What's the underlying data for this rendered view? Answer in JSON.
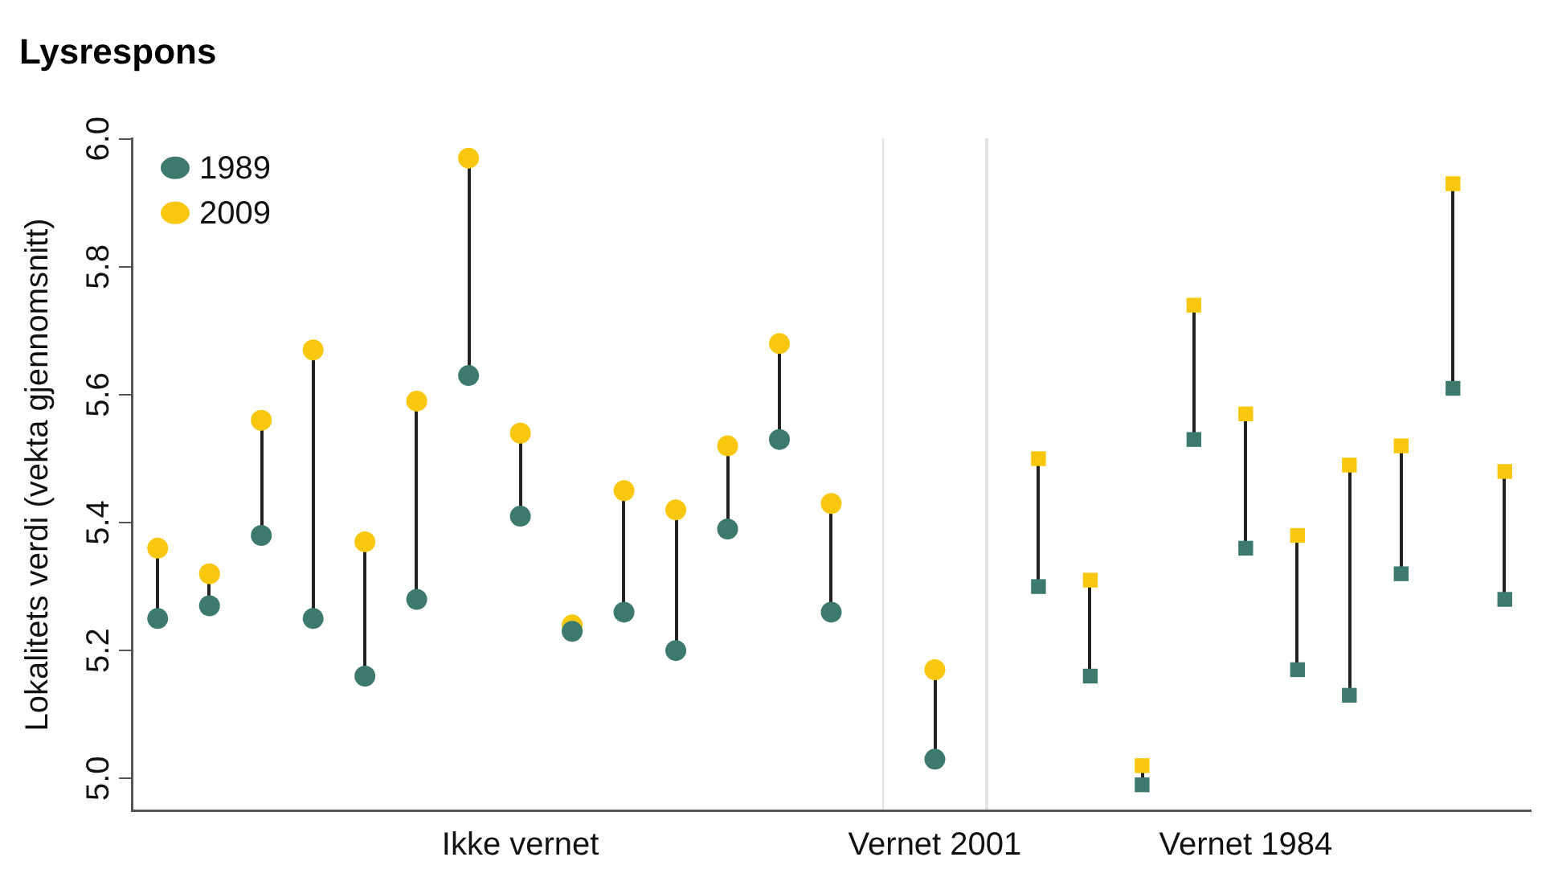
{
  "chart_data": {
    "type": "scatter",
    "title": "Lysrespons",
    "ylabel": "Lokalitets verdi (vekta gjennomsnitt)",
    "categories": [
      null,
      null,
      null,
      null,
      null,
      null,
      null,
      "Ikke vernet",
      null,
      null,
      null,
      null,
      null,
      null,
      null,
      "Vernet 2001",
      null,
      null,
      null,
      null,
      null,
      "Vernet 1984",
      null,
      null,
      null,
      null,
      null
    ],
    "ylim": [
      4.95,
      6.0
    ],
    "yticks": [
      {
        "value": 5,
        "label": "5.0"
      },
      5.2,
      5.4,
      5.6,
      5.8,
      {
        "value": 6,
        "label": "6.0"
      }
    ],
    "grid": false,
    "legend": "top left",
    "series": [
      {
        "name": "1989",
        "color": "#3d7a6e",
        "marker": "circle",
        "values": [
          5.25,
          5.27,
          5.38,
          5.25,
          5.16,
          5.28,
          5.63,
          5.41,
          5.23,
          5.26,
          5.2,
          5.39,
          5.53,
          5.26,
          null,
          5.03,
          null,
          null,
          null,
          null,
          null,
          null,
          null,
          null,
          null,
          null,
          null
        ]
      },
      {
        "name": "2009",
        "color": "#f9c80e",
        "marker": "circle",
        "values": [
          5.36,
          5.32,
          5.56,
          5.67,
          5.37,
          5.59,
          5.97,
          5.54,
          5.24,
          5.45,
          5.42,
          5.52,
          5.68,
          5.43,
          null,
          5.17,
          null,
          null,
          null,
          null,
          null,
          null,
          null,
          null,
          null,
          null,
          null
        ]
      },
      {
        "color": "#3d7a6e",
        "marker": "square",
        "values": [
          null,
          null,
          null,
          null,
          null,
          null,
          null,
          null,
          null,
          null,
          null,
          null,
          null,
          null,
          null,
          null,
          null,
          5.3,
          5.16,
          4.99,
          5.53,
          5.36,
          5.17,
          5.13,
          5.32,
          5.61,
          5.28
        ]
      },
      {
        "color": "#f9c80e",
        "marker": "square",
        "values": [
          null,
          null,
          null,
          null,
          null,
          null,
          null,
          null,
          null,
          null,
          null,
          null,
          null,
          null,
          null,
          null,
          null,
          5.5,
          5.31,
          5.02,
          5.74,
          5.57,
          5.38,
          5.49,
          5.52,
          5.93,
          5.48
        ]
      }
    ]
  }
}
